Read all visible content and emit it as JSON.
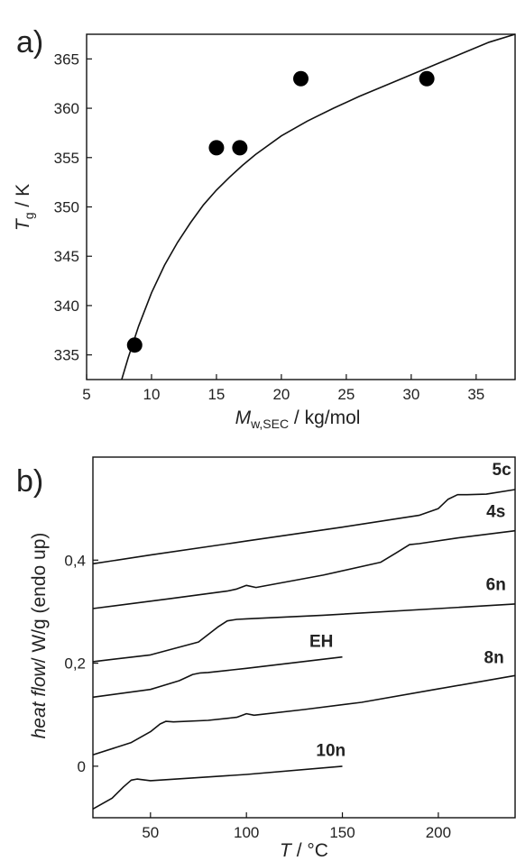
{
  "chart_data": [
    {
      "type": "scatter",
      "panel_label": "a)",
      "xlabel": {
        "italic": "M",
        "sub": "w,SEC",
        "unit": " / kg/mol"
      },
      "ylabel": {
        "italic": "T",
        "sub": "g",
        "unit": " / K"
      },
      "xlim": [
        5,
        38
      ],
      "ylim": [
        332.5,
        367.5
      ],
      "xticks": [
        5,
        10,
        15,
        20,
        25,
        30,
        35
      ],
      "yticks": [
        335,
        340,
        345,
        350,
        355,
        360,
        365
      ],
      "points": [
        {
          "x": 8.7,
          "y": 336
        },
        {
          "x": 15.0,
          "y": 356
        },
        {
          "x": 16.8,
          "y": 356
        },
        {
          "x": 21.5,
          "y": 363
        },
        {
          "x": 31.2,
          "y": 363
        }
      ],
      "fit_curve": {
        "x": [
          7.7,
          8.2,
          9,
          10,
          11,
          12,
          13,
          14,
          15,
          16,
          17,
          18,
          20,
          22,
          24,
          26,
          28,
          30,
          32,
          34,
          36,
          38
        ],
        "y": [
          332.5,
          334.7,
          337.9,
          341.3,
          344.1,
          346.4,
          348.4,
          350.2,
          351.7,
          353.0,
          354.2,
          355.3,
          357.2,
          358.7,
          360.0,
          361.2,
          362.3,
          363.4,
          364.5,
          365.6,
          366.7,
          367.5
        ]
      },
      "grid": false,
      "legend": "none"
    },
    {
      "type": "line",
      "panel_label": "b)",
      "xlabel": {
        "italic": "T",
        "unit": " / °C"
      },
      "ylabel": {
        "italic": "heat flow",
        "unit": "/ W/g (endo up)"
      },
      "xlim": [
        20,
        240
      ],
      "ylim": [
        -0.1,
        0.6
      ],
      "xticks": [
        50,
        100,
        150,
        200
      ],
      "yticks": [
        {
          "value": 0,
          "label": "0"
        },
        {
          "value": 0.2,
          "label": "0,2"
        },
        {
          "value": 0.4,
          "label": "0,4"
        }
      ],
      "series": [
        {
          "name": "5c",
          "x": [
            20,
            50,
            100,
            150,
            190,
            200,
            205,
            210,
            215,
            225,
            240
          ],
          "y": [
            0.393,
            0.41,
            0.437,
            0.464,
            0.487,
            0.5,
            0.518,
            0.527,
            0.527,
            0.528,
            0.537
          ],
          "label_at": [
            233,
            0.565
          ]
        },
        {
          "name": "4s",
          "x": [
            20,
            60,
            90,
            95,
            100,
            105,
            140,
            170,
            178,
            185,
            190,
            210,
            240
          ],
          "y": [
            0.306,
            0.325,
            0.34,
            0.344,
            0.351,
            0.347,
            0.371,
            0.396,
            0.414,
            0.43,
            0.432,
            0.443,
            0.457
          ],
          "label_at": [
            230,
            0.484
          ]
        },
        {
          "name": "6n",
          "x": [
            20,
            50,
            75,
            85,
            90,
            95,
            100,
            140,
            200,
            240
          ],
          "y": [
            0.203,
            0.216,
            0.241,
            0.27,
            0.282,
            0.285,
            0.286,
            0.293,
            0.306,
            0.315
          ],
          "label_at": [
            230,
            0.342
          ]
        },
        {
          "name": "EH",
          "x": [
            20,
            50,
            65,
            72,
            76,
            80,
            100,
            150
          ],
          "y": [
            0.134,
            0.149,
            0.166,
            0.178,
            0.181,
            0.182,
            0.19,
            0.212
          ],
          "label_at": [
            139,
            0.232
          ]
        },
        {
          "name": "8n",
          "x": [
            20,
            40,
            50,
            55,
            58,
            62,
            80,
            95,
            100,
            104,
            130,
            160,
            200,
            240
          ],
          "y": [
            0.022,
            0.046,
            0.067,
            0.082,
            0.087,
            0.086,
            0.089,
            0.095,
            0.102,
            0.099,
            0.11,
            0.124,
            0.15,
            0.176
          ],
          "label_at": [
            229,
            0.2
          ]
        },
        {
          "name": "10n",
          "x": [
            20,
            30,
            36,
            40,
            43,
            50,
            100,
            150
          ],
          "y": [
            -0.083,
            -0.062,
            -0.04,
            -0.027,
            -0.025,
            -0.028,
            -0.016,
            0
          ],
          "label_at": [
            144,
            0.02
          ]
        }
      ],
      "grid": false,
      "legend": "none"
    }
  ]
}
